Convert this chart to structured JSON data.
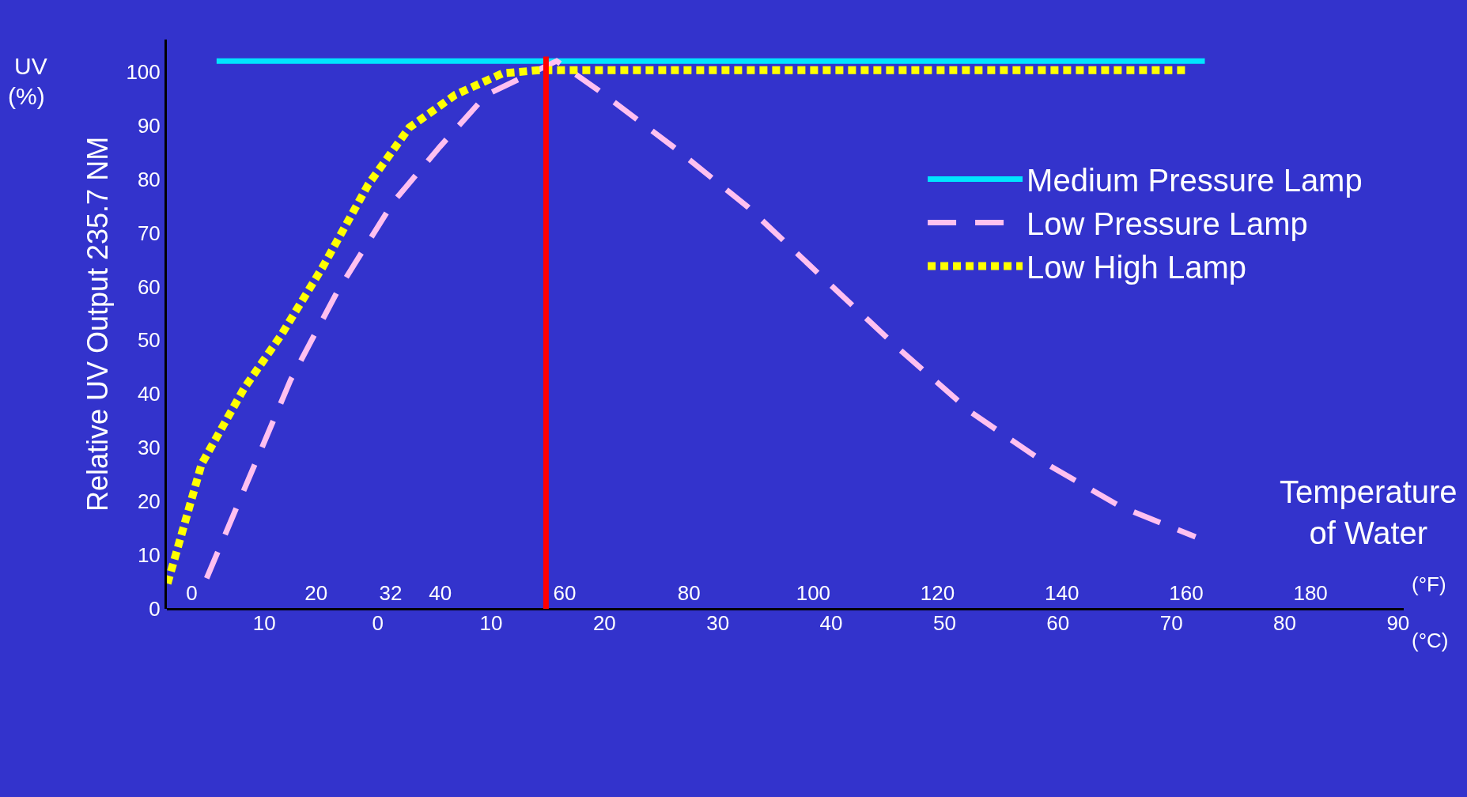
{
  "chart_data": {
    "type": "line",
    "ylabel": "Relative UV Output 235.7 NM",
    "xlabel": "(°F)",
    "x2label": "(°C)",
    "xlim": [
      -4,
      195
    ],
    "xticks": [
      0,
      20,
      32,
      40,
      60,
      80,
      100,
      120,
      140,
      160,
      180
    ],
    "x2lim": [
      -18.6,
      90.5
    ],
    "x2ticks": [
      {
        "value": -10,
        "label": "10"
      },
      0,
      10,
      20,
      30,
      40,
      50,
      60,
      70,
      80,
      90
    ],
    "ylim": [
      0,
      106
    ],
    "yticks": [
      0,
      10,
      20,
      30,
      40,
      50,
      60,
      70,
      80,
      90,
      100
    ],
    "grid": false,
    "legend": "top right",
    "series": [
      {
        "name": "Medium Pressure Lamp",
        "color": "#00e5ff",
        "line_style": "solid",
        "x": [
          4,
          163
        ],
        "values": [
          102,
          102
        ]
      },
      {
        "name": "Low Pressure Lamp",
        "color": "#ffc0f0",
        "line_style": "dashed",
        "x": [
          2.4,
          9.2,
          15.9,
          23.4,
          32.4,
          39.9,
          47.4,
          58.7,
          65.5,
          77.5,
          89.5,
          101.5,
          113.5,
          125.5,
          137.5,
          149.5,
          161.5
        ],
        "values": [
          5.7,
          24.3,
          42.6,
          59,
          75.7,
          86,
          95.7,
          102,
          96.5,
          86,
          74.8,
          61.7,
          48.7,
          36.5,
          27,
          19,
          13.4
        ]
      },
      {
        "name": "Low High Lamp",
        "color": "#ffff00",
        "line_style": "dotted",
        "x": [
          -3.9,
          1.6,
          8.4,
          14.4,
          21,
          28.4,
          35,
          42.4,
          50,
          56,
          160
        ],
        "values": [
          4.7,
          27,
          41,
          51,
          63.5,
          79,
          89.6,
          95.7,
          99.7,
          100.3,
          100.3
        ]
      }
    ],
    "ref_lines": [
      {
        "axis": "x",
        "value": 57,
        "color": "#ff0000",
        "line_style": "solid"
      }
    ],
    "annotations": [
      "UV",
      "(%)",
      "Temperature\nof Water"
    ]
  }
}
